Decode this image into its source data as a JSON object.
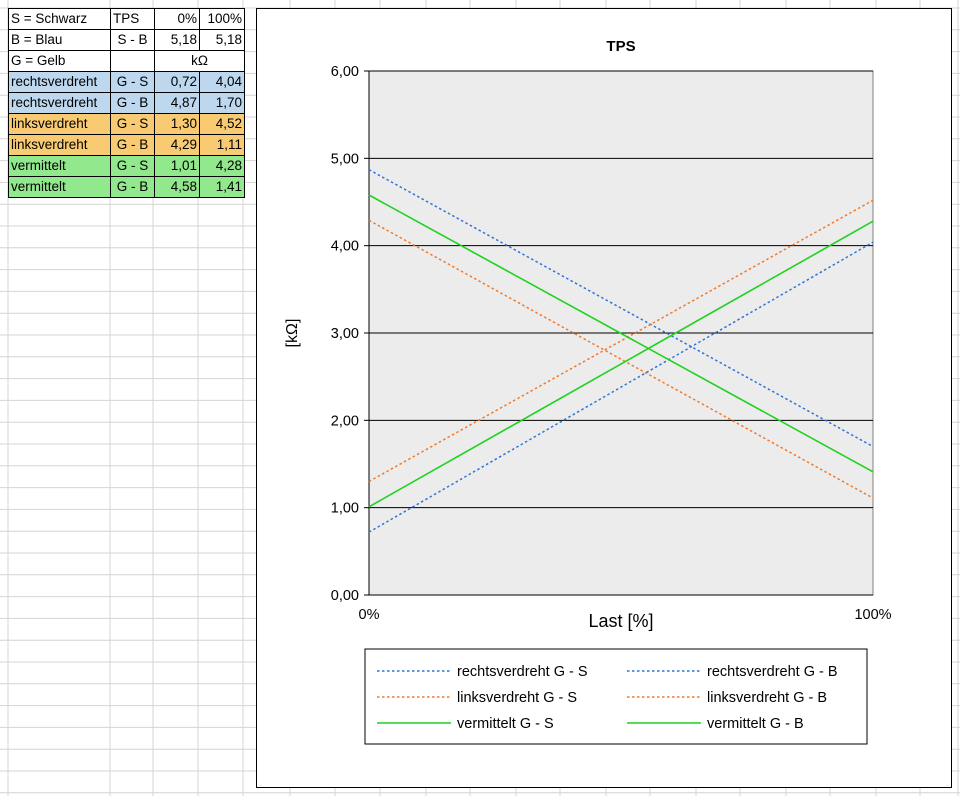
{
  "sheet": {
    "rows": [
      {
        "c": [
          "S = Schwarz",
          "TPS",
          "0%",
          "100%"
        ],
        "fill": "#ffffff"
      },
      {
        "c": [
          "B = Blau",
          "S - B",
          "5,18",
          "5,18"
        ],
        "fill": "#ffffff"
      },
      {
        "c": [
          "G = Gelb",
          "",
          "kΩ",
          ""
        ],
        "fill": "#ffffff",
        "merge_last": true
      },
      {
        "c": [
          "rechtsverdreht",
          "G - S",
          "0,72",
          "4,04"
        ],
        "fill": "#bdd7ee"
      },
      {
        "c": [
          "rechtsverdreht",
          "G - B",
          "4,87",
          "1,70"
        ],
        "fill": "#bdd7ee"
      },
      {
        "c": [
          "linksverdreht",
          "G - S",
          "1,30",
          "4,52"
        ],
        "fill": "#f8cb73"
      },
      {
        "c": [
          "linksverdreht",
          "G - B",
          "4,29",
          "1,11"
        ],
        "fill": "#f8cb73"
      },
      {
        "c": [
          "vermittelt",
          "G - S",
          "1,01",
          "4,28"
        ],
        "fill": "#92e88c"
      },
      {
        "c": [
          "vermittelt",
          "G - B",
          "4,58",
          "1,41"
        ],
        "fill": "#92e88c"
      }
    ]
  },
  "chart_data": {
    "type": "line",
    "title": "TPS",
    "xlabel": "Last [%]",
    "ylabel": "[kΩ]",
    "x": [
      "0%",
      "100%"
    ],
    "ylim": [
      0,
      6
    ],
    "yticks": [
      "0,00",
      "1,00",
      "2,00",
      "3,00",
      "4,00",
      "5,00",
      "6,00"
    ],
    "grid": true,
    "legend_position": "bottom",
    "series": [
      {
        "name": "rechtsverdreht G - S",
        "values": [
          0.72,
          4.04
        ],
        "color": "#2e75d6",
        "dash": true
      },
      {
        "name": "rechtsverdreht G - B",
        "values": [
          4.87,
          1.7
        ],
        "color": "#2e75d6",
        "dash": true
      },
      {
        "name": "linksverdreht G - S",
        "values": [
          1.3,
          4.52
        ],
        "color": "#f07a2a",
        "dash": true
      },
      {
        "name": "linksverdreht G - B",
        "values": [
          4.29,
          1.11
        ],
        "color": "#f07a2a",
        "dash": true
      },
      {
        "name": "vermittelt G - S",
        "values": [
          1.01,
          4.28
        ],
        "color": "#1ed21e",
        "dash": false
      },
      {
        "name": "vermittelt G - B",
        "values": [
          4.58,
          1.41
        ],
        "color": "#1ed21e",
        "dash": false
      }
    ]
  }
}
